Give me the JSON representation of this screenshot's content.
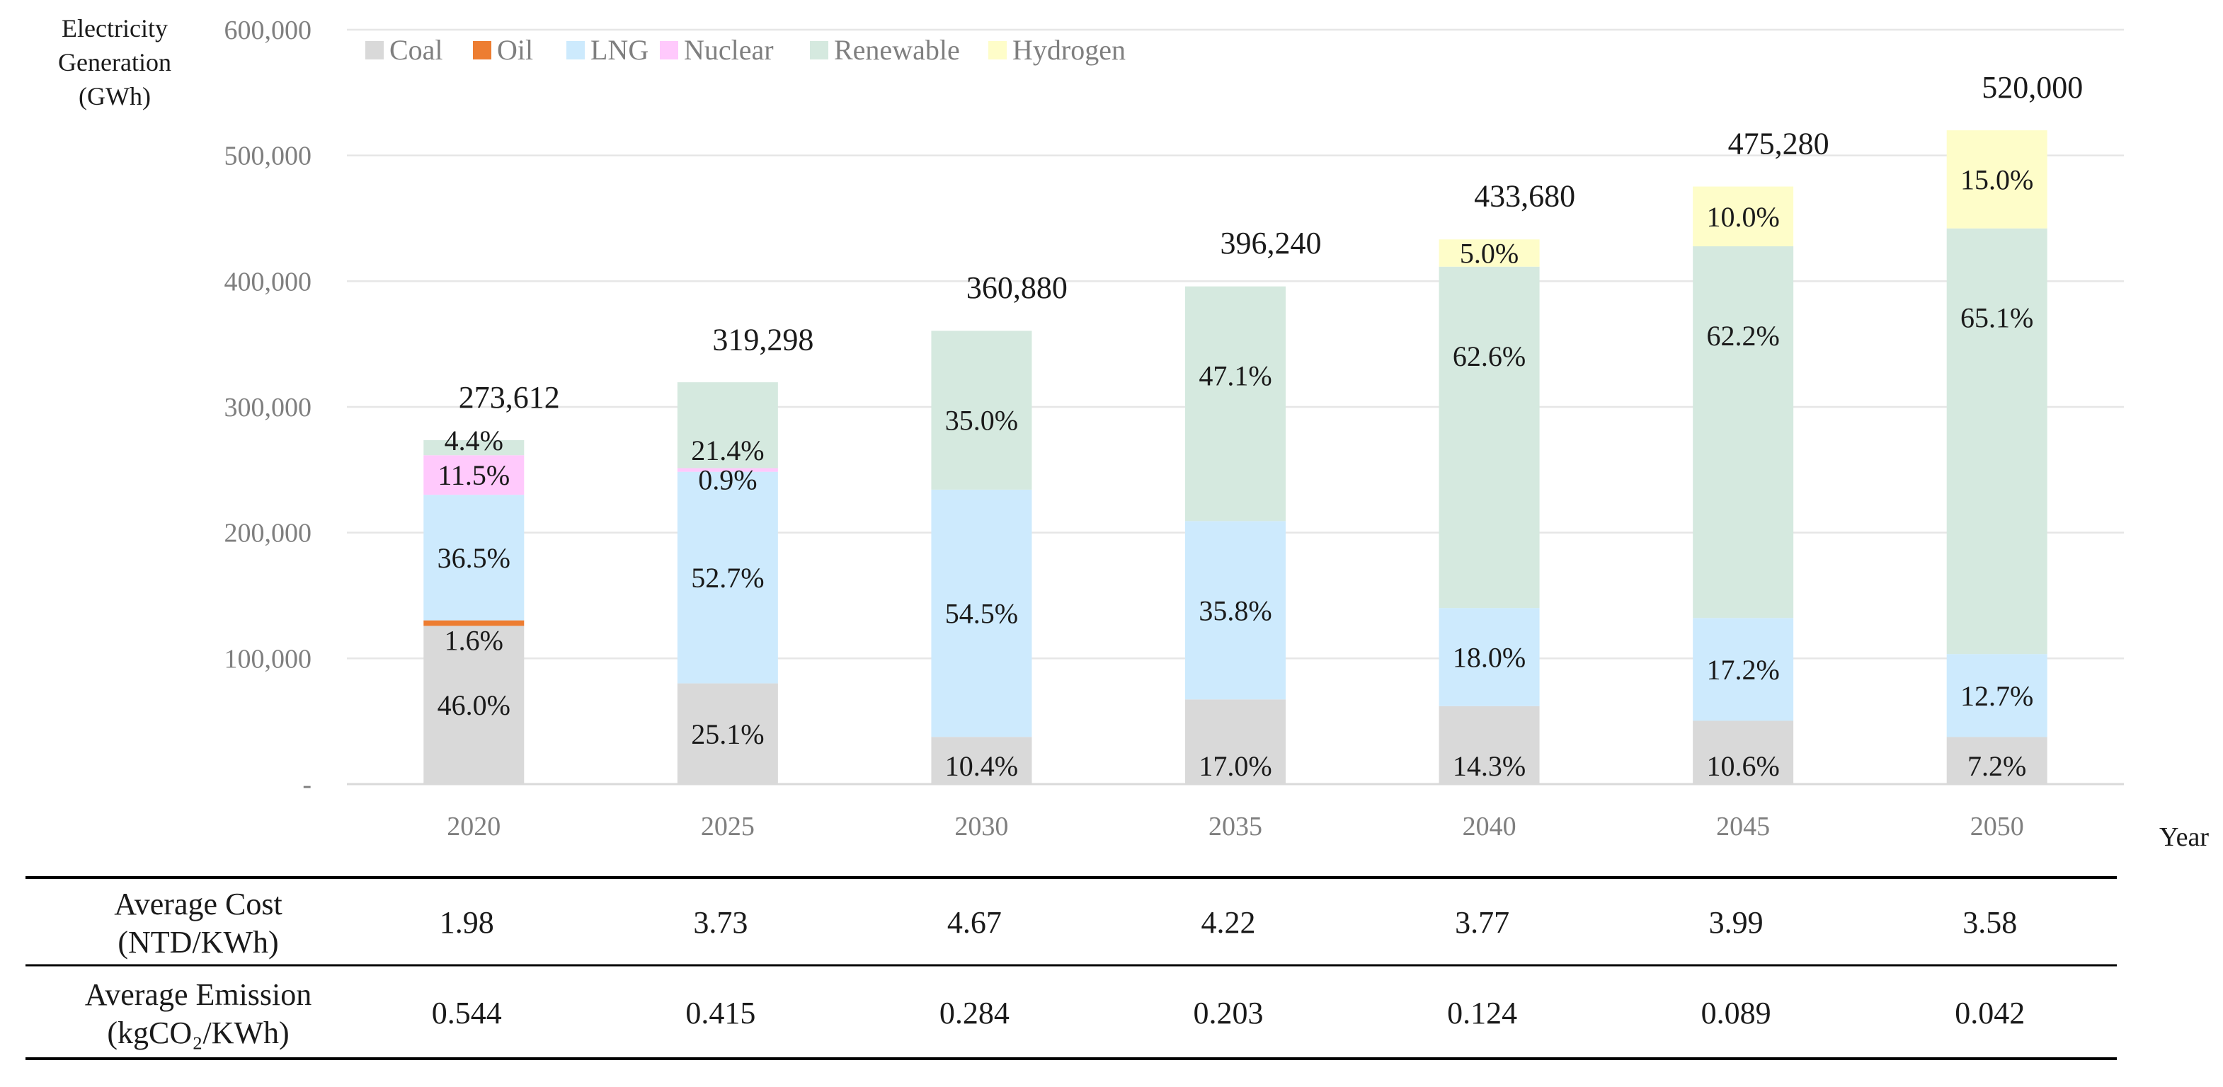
{
  "chart_data": {
    "type": "bar",
    "stacked": true,
    "ylabel": "Electricity\nGeneration\n(GWh)",
    "xlabel": "Year",
    "ylim": [
      0,
      600000
    ],
    "yticks": [
      0,
      100000,
      200000,
      300000,
      400000,
      500000,
      600000
    ],
    "ytick_labels": [
      "-",
      "100,000",
      "200,000",
      "300,000",
      "400,000",
      "500,000",
      "600,000"
    ],
    "grid": true,
    "legend_position": "top-left",
    "categories": [
      "2020",
      "2025",
      "2030",
      "2035",
      "2040",
      "2045",
      "2050"
    ],
    "totals": [
      273612,
      319298,
      360880,
      396240,
      433680,
      475280,
      520000
    ],
    "total_labels": [
      "273,612",
      "319,298",
      "360,880",
      "396,240",
      "433,680",
      "475,280",
      "520,000"
    ],
    "series": [
      {
        "name": "Coal",
        "color": "#d9d9d9",
        "values": [
          125862,
          80144,
          37532,
          67361,
          62016,
          50380,
          37440
        ],
        "labels": [
          "46.0%",
          "25.1%",
          "10.4%",
          "17.0%",
          "14.3%",
          "10.6%",
          "7.2%"
        ]
      },
      {
        "name": "Oil",
        "color": "#ed7d31",
        "values": [
          4378,
          0,
          0,
          0,
          0,
          0,
          0
        ],
        "labels": [
          "1.6%",
          "",
          "",
          "",
          "",
          "",
          ""
        ]
      },
      {
        "name": "LNG",
        "color": "#cdeafd",
        "values": [
          99868,
          168270,
          196680,
          141854,
          78062,
          81748,
          66040
        ],
        "labels": [
          "36.5%",
          "52.7%",
          "54.5%",
          "35.8%",
          "18.0%",
          "17.2%",
          "12.7%"
        ]
      },
      {
        "name": "Nuclear",
        "color": "#ffc9fc",
        "values": [
          31465,
          2874,
          0,
          0,
          0,
          0,
          0
        ],
        "labels": [
          "11.5%",
          "0.9%",
          "",
          "",
          "",
          "",
          ""
        ]
      },
      {
        "name": "Renewable",
        "color": "#d5e9df",
        "values": [
          12039,
          68330,
          126308,
          186629,
          271484,
          295624,
          338520
        ],
        "labels": [
          "4.4%",
          "21.4%",
          "35.0%",
          "47.1%",
          "62.6%",
          "62.2%",
          "65.1%"
        ]
      },
      {
        "name": "Hydrogen",
        "color": "#fefdc9",
        "values": [
          0,
          0,
          0,
          0,
          21684,
          47528,
          78000
        ],
        "labels": [
          "",
          "",
          "",
          "",
          "5.0%",
          "10.0%",
          "15.0%"
        ]
      }
    ]
  },
  "table": {
    "rows": [
      {
        "label": "Average Cost\n(NTD/KWh)",
        "values": [
          "1.98",
          "3.73",
          "4.67",
          "4.22",
          "3.77",
          "3.99",
          "3.58"
        ]
      },
      {
        "label": "Average Emission\n(kgCO₂/KWh)",
        "values": [
          "0.544",
          "0.415",
          "0.284",
          "0.203",
          "0.124",
          "0.089",
          "0.042"
        ]
      }
    ]
  }
}
